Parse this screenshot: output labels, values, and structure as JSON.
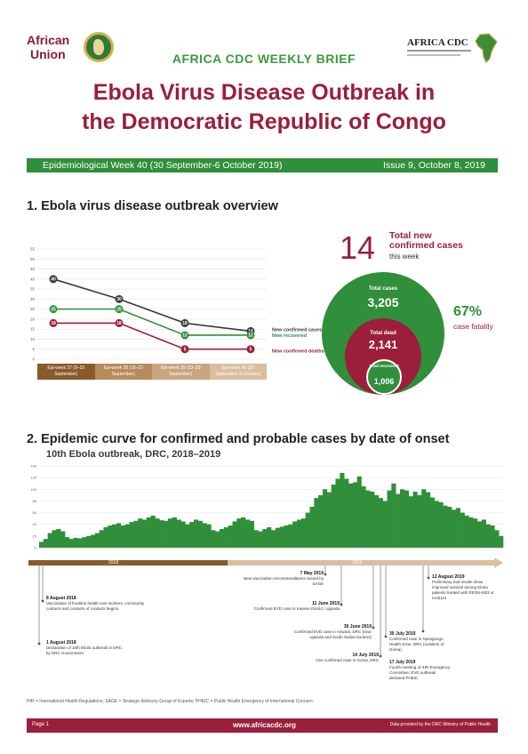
{
  "header": {
    "au_logo_line1": "African",
    "au_logo_line2": "Union",
    "cdc_logo": "AFRICA CDC",
    "brief_title": "AFRICA CDC WEEKLY BRIEF",
    "title_line1": "Ebola Virus Disease Outbreak in",
    "title_line2": "the Democratic Republic of Congo"
  },
  "banner": {
    "week": "Epidemiological Week 40 (30 September-6 October 2019)",
    "issue": "Issue 9, October 8, 2019"
  },
  "section1": {
    "heading": "1. Ebola virus disease outbreak overview",
    "weeks": [
      "Epi-week 37 (9–15 September)",
      "Epi-week 38 (16–22 September)",
      "Epi-week 39 (23–29 September)",
      "Epi-week 40 (30 September–6 October)"
    ],
    "week_colors": [
      "#8a5a2b",
      "#b78a5c",
      "#c9a57f",
      "#d9bf9f"
    ],
    "legend": [
      "New confirmed cases",
      "New recovered",
      "New confirmed deaths"
    ],
    "yticks": [
      "0",
      "5",
      "10",
      "15",
      "20",
      "25",
      "30",
      "35",
      "40",
      "45",
      "50",
      "55"
    ]
  },
  "chart_data": [
    {
      "type": "line",
      "categories": [
        "Epi-week 37 (9–15 September)",
        "Epi-week 38 (16–22 September)",
        "Epi-week 39 (23–29 September)",
        "Epi-week 40 (30 September–6 October)"
      ],
      "ylim": [
        0,
        55
      ],
      "series": [
        {
          "name": "New confirmed cases",
          "color": "#3a3a3a",
          "values": [
            40,
            30,
            18,
            14
          ]
        },
        {
          "name": "New recovered",
          "color": "#2f8f3a",
          "values": [
            25,
            25,
            12,
            12
          ]
        },
        {
          "name": "New confirmed deaths",
          "color": "#9b1e3a",
          "values": [
            18,
            18,
            5,
            5
          ]
        }
      ]
    },
    {
      "type": "bar",
      "title": "10th Ebola outbreak, DRC, 2018–2019",
      "ylim": [
        0,
        140
      ],
      "color": "#2f8f3a",
      "values": [
        10,
        15,
        25,
        30,
        32,
        28,
        18,
        15,
        17,
        16,
        18,
        20,
        22,
        25,
        30,
        35,
        38,
        40,
        42,
        38,
        40,
        44,
        46,
        50,
        48,
        52,
        55,
        50,
        47,
        46,
        50,
        52,
        48,
        45,
        40,
        44,
        48,
        46,
        42,
        40,
        30,
        28,
        32,
        35,
        38,
        45,
        50,
        52,
        48,
        46,
        30,
        28,
        32,
        35,
        30,
        34,
        36,
        38,
        40,
        45,
        48,
        50,
        60,
        70,
        85,
        90,
        100,
        95,
        108,
        118,
        128,
        118,
        110,
        112,
        122,
        105,
        98,
        96,
        90,
        85,
        80,
        98,
        110,
        92,
        100,
        98,
        88,
        96,
        90,
        100,
        95,
        86,
        80,
        78,
        72,
        70,
        65,
        68,
        60,
        55,
        52,
        50,
        45,
        48,
        40,
        38,
        30,
        20
      ]
    }
  ],
  "stats": {
    "new_confirmed_value": "14",
    "new_confirmed_label": "Total new confirmed cases",
    "new_confirmed_sub": "this week",
    "total_cases_label": "Total cases",
    "total_cases_value": "3,205",
    "total_dead_label": "Total dead",
    "total_dead_value": "2,141",
    "total_recovered_label": "Total recovered",
    "total_recovered_value": "1,006",
    "fatality_value": "67%",
    "fatality_label": "case fatality"
  },
  "section2": {
    "heading": "2. Epidemic curve for confirmed and probable cases by date of onset",
    "subtitle": "10th Ebola outbreak, DRC, 2018–2019",
    "yticks": [
      "0",
      "20",
      "40",
      "60",
      "80",
      "100",
      "120",
      "140"
    ],
    "year_a": "2018",
    "year_b": "2019"
  },
  "timeline": {
    "e1_date": "8 August 2018",
    "e1_text": "Vaccination of frontline health care workers, community contacts and contacts of contacts begins",
    "e2_date": "1 August 2018",
    "e2_text": "Declaration of 10th Ebola outbreak in DRC by DRC Government",
    "e3_date": "7 May 2019",
    "e3_text": "New vaccination recommendations issued by SAGE",
    "e4_date": "11 June 2019",
    "e4_text": "Confirmed EVD case in Kasese District, Uganda",
    "e5_date": "30 June 2019",
    "e5_text": "Confirmed EVD case in Ariwara, DRC (near Uganda and South Sudan borders)",
    "e6_date": "14 July 2019",
    "e6_text": "One confirmed case in Goma, DRC",
    "e7_date": "17 July 2019",
    "e7_text": "Fourth meeting of IHR Emergency Committee; EVD outbreak declared PHEIC",
    "e8_date": "30 July 2019",
    "e8_text": "Confirmed case in Nyiragongo Health Zone, DRC (outskirts of Goma)",
    "e9_date": "12 August 2019",
    "e9_text": "Preliminary trial results show improved survival among Ebola patients treated with REGN-EB3 or mAb114"
  },
  "abbreviations": "IHR = International Health Regulations; SAGE = Strategic Advisory Group of Experts; PHEIC = Public Health Emergency of International Concern",
  "footer": {
    "page": "Page 1",
    "url": "www.africacdc.org",
    "source": "Data provided by the DRC Ministry of Public Health"
  }
}
